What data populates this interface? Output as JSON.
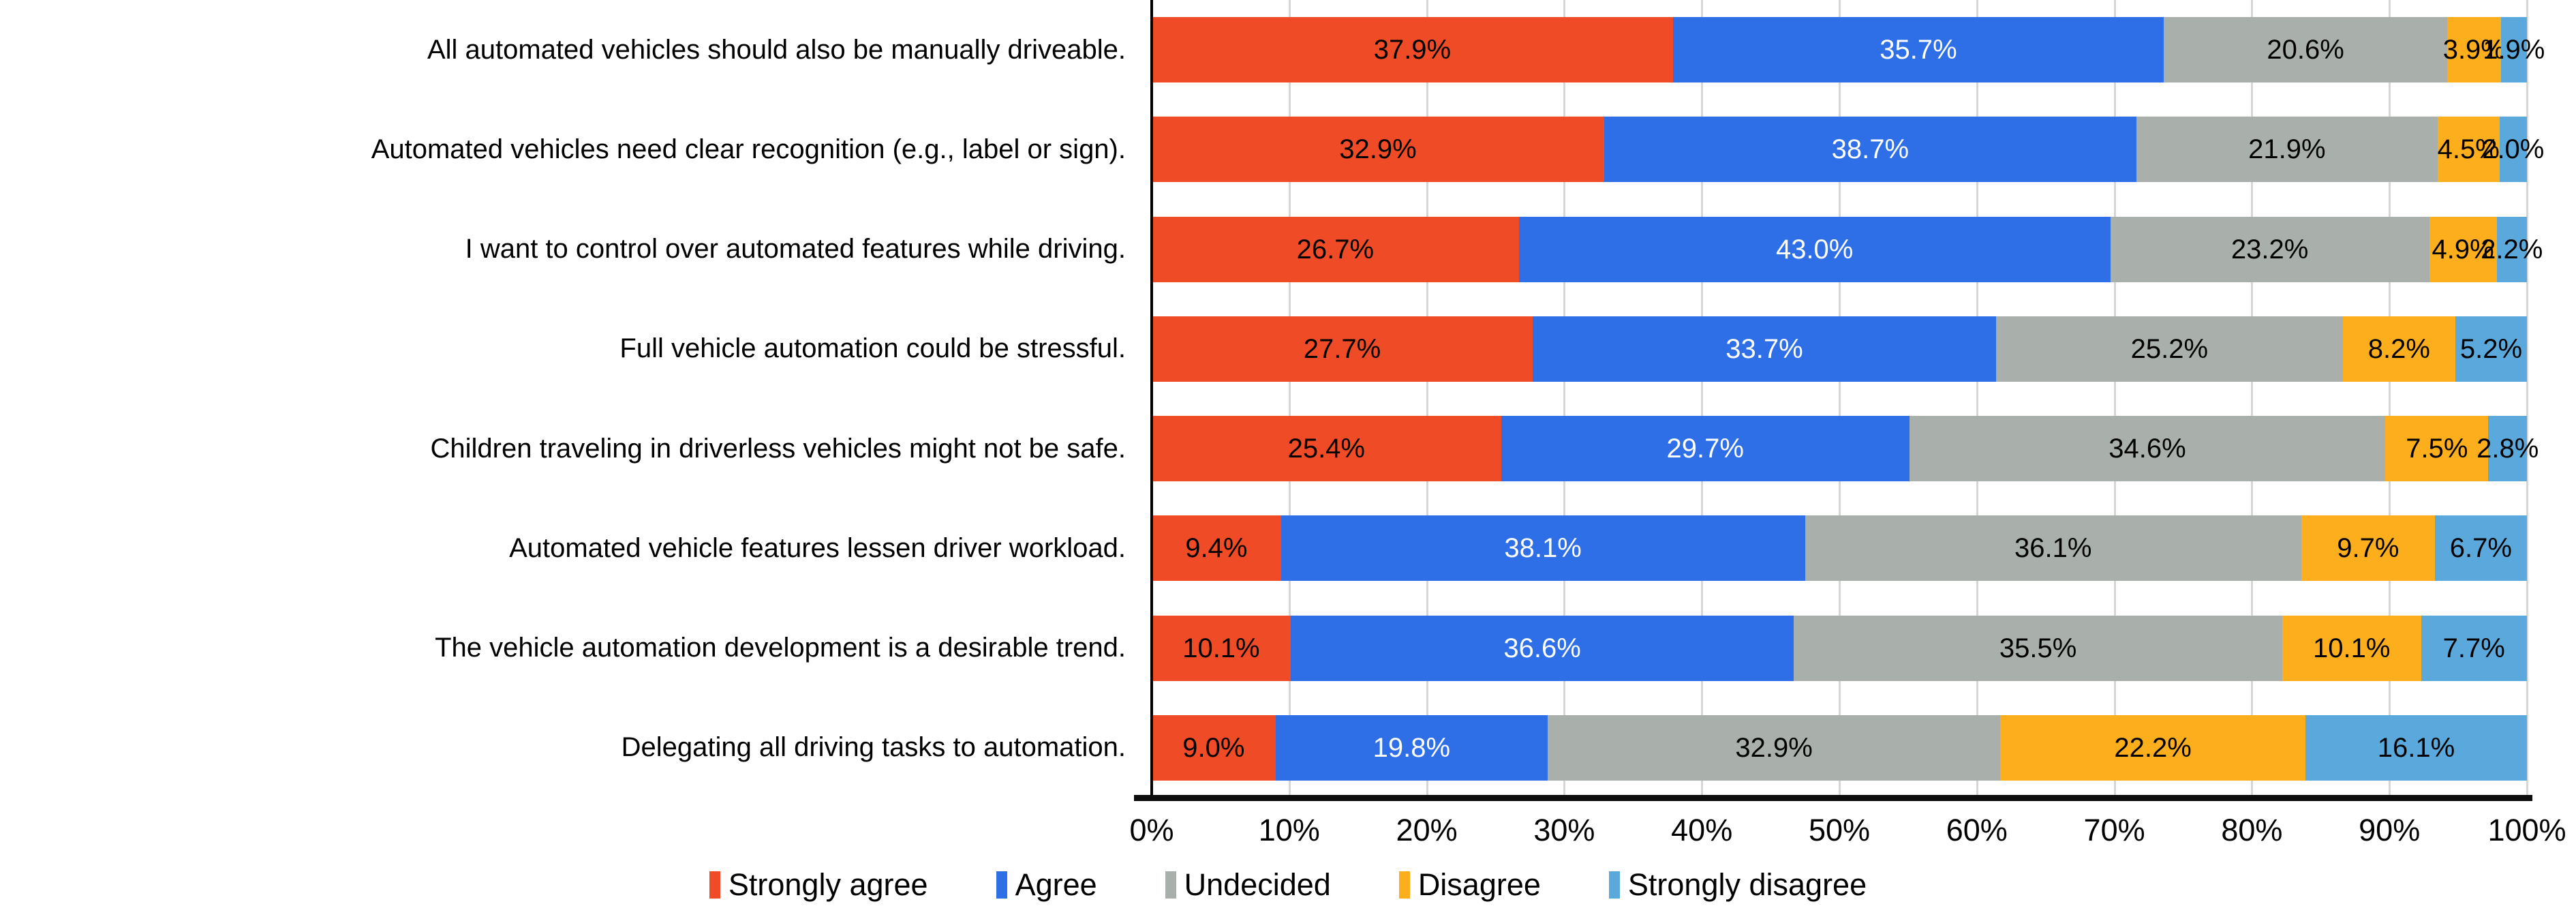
{
  "chart_data": {
    "type": "bar",
    "variant": "horizontal-stacked-100pct",
    "title": "",
    "xlabel": "",
    "ylabel": "",
    "value_suffix": "%",
    "xlim": [
      0,
      100
    ],
    "grid": true,
    "legend_position": "bottom",
    "x_axis_ticks": [
      "0%",
      "10%",
      "20%",
      "30%",
      "40%",
      "50%",
      "60%",
      "70%",
      "80%",
      "90%",
      "100%"
    ],
    "categories": [
      "All automated vehicles should also be manually driveable.",
      "Automated vehicles need clear recognition (e.g., label or sign).",
      "I want to control over automated features while driving.",
      "Full vehicle automation could be stressful.",
      "Children traveling in driverless vehicles might not be safe.",
      "Automated vehicle features lessen driver workload.",
      "The vehicle automation development is a desirable trend.",
      "Delegating all driving tasks to automation."
    ],
    "series": [
      {
        "name": "Strongly agree",
        "color": "#F04B27",
        "label_color": "#000000"
      },
      {
        "name": "Agree",
        "color": "#2E6FE8",
        "label_color": "#FFFFFF"
      },
      {
        "name": "Undecided",
        "color": "#A9B0AB",
        "label_color": "#000000"
      },
      {
        "name": "Disagree",
        "color": "#FDAE1D",
        "label_color": "#000000"
      },
      {
        "name": "Strongly disagree",
        "color": "#5BA9DC",
        "label_color": "#000000"
      }
    ],
    "values": [
      [
        37.9,
        35.7,
        20.6,
        3.9,
        1.9
      ],
      [
        32.9,
        38.7,
        21.9,
        4.5,
        2.0
      ],
      [
        26.7,
        43.0,
        23.2,
        4.9,
        2.2
      ],
      [
        27.7,
        33.7,
        25.2,
        8.2,
        5.2
      ],
      [
        25.4,
        29.7,
        34.6,
        7.5,
        2.8
      ],
      [
        9.4,
        38.1,
        36.1,
        9.7,
        6.7
      ],
      [
        10.1,
        36.6,
        35.5,
        10.1,
        7.7
      ],
      [
        9.0,
        19.8,
        32.9,
        22.2,
        16.1
      ]
    ],
    "colors": {
      "gridline": "#D6D6D6",
      "axis": "#000000",
      "background": "#FFFFFF"
    }
  }
}
